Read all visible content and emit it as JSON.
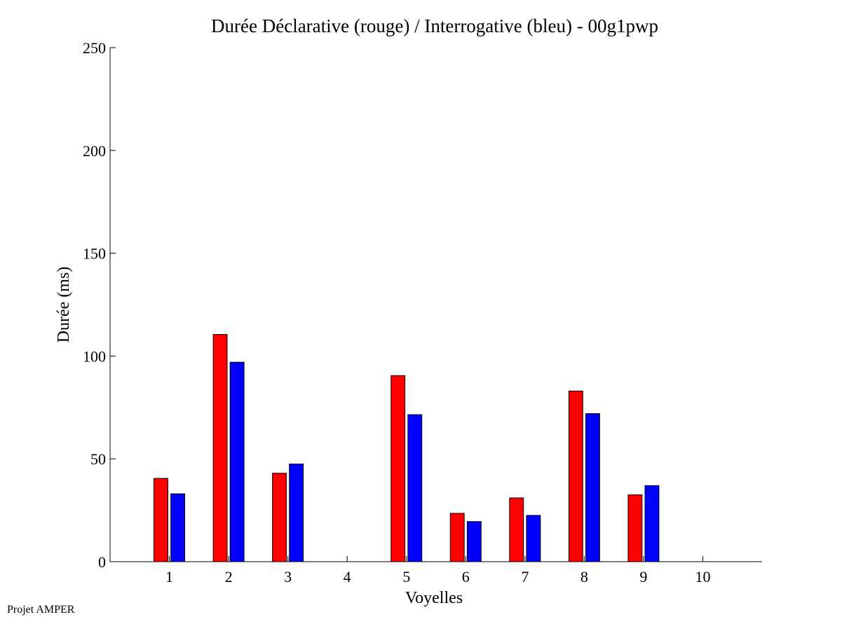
{
  "chart_data": {
    "type": "bar",
    "title": "Durée Déclarative (rouge) / Interrogative (bleu) - 00g1pwp",
    "xlabel": "Voyelles",
    "ylabel": "Durée (ms)",
    "categories": [
      "1",
      "2",
      "3",
      "4",
      "5",
      "6",
      "7",
      "8",
      "9",
      "10"
    ],
    "xlim": [
      0,
      11
    ],
    "ylim": [
      0,
      250
    ],
    "yticks": [
      0,
      50,
      100,
      150,
      200,
      250
    ],
    "grid": false,
    "series": [
      {
        "color": "#ff0000",
        "values": [
          40.5,
          110.5,
          43,
          null,
          90.5,
          23.5,
          31,
          83,
          32.5,
          null
        ]
      },
      {
        "color": "#0000ff",
        "values": [
          33,
          97,
          47.5,
          null,
          71.5,
          19.5,
          22.5,
          72,
          37,
          null
        ]
      }
    ]
  },
  "footer": "Projet AMPER"
}
